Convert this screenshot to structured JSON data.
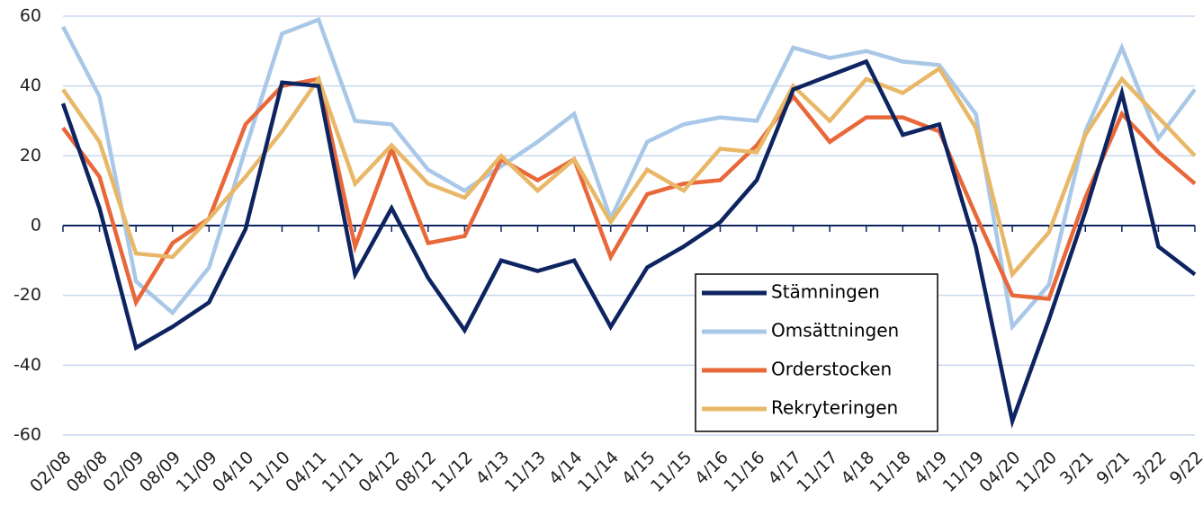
{
  "chart_data": {
    "type": "line",
    "categories": [
      "02/08",
      "08/08",
      "02/09",
      "08/09",
      "11/09",
      "04/10",
      "11/10",
      "04/11",
      "11/11",
      "04/12",
      "08/12",
      "11/12",
      "4/13",
      "11/13",
      "4/14",
      "11/14",
      "4/15",
      "11/15",
      "4/16",
      "11/16",
      "4/17",
      "11/17",
      "4/18",
      "11/18",
      "4/19",
      "11/19",
      "04/20",
      "11/20",
      "3/21",
      "9/21",
      "3/22",
      "9/22"
    ],
    "series": [
      {
        "name": "Stämningen",
        "color": "#0d2460",
        "values": [
          35,
          5,
          -35,
          -29,
          -22,
          -1,
          41,
          40,
          -14,
          5,
          -15,
          -30,
          -10,
          -13,
          -10,
          -29,
          -12,
          -6,
          1,
          13,
          39,
          43,
          47,
          26,
          29,
          -6,
          -56,
          -27,
          4,
          38,
          -6,
          -14
        ]
      },
      {
        "name": "Omsättningen",
        "color": "#a9c8e8",
        "values": [
          57,
          37,
          -16,
          -25,
          -12,
          22,
          55,
          59,
          30,
          29,
          16,
          10,
          17,
          24,
          32,
          2,
          24,
          29,
          31,
          30,
          51,
          48,
          50,
          47,
          46,
          32,
          -29,
          -17,
          27,
          51,
          25,
          39
        ]
      },
      {
        "name": "Orderstocken",
        "color": "#e8683a",
        "values": [
          28,
          14,
          -22,
          -5,
          2,
          29,
          40,
          42,
          -6,
          22,
          -5,
          -3,
          19,
          13,
          19,
          -9,
          9,
          12,
          13,
          23,
          37,
          24,
          31,
          31,
          27,
          3,
          -20,
          -21,
          8,
          32,
          21,
          12
        ]
      },
      {
        "name": "Rekryteringen",
        "color": "#e8b868",
        "values": [
          39,
          24,
          -8,
          -9,
          2,
          14,
          27,
          42,
          12,
          23,
          12,
          8,
          20,
          10,
          19,
          1,
          16,
          10,
          22,
          21,
          40,
          30,
          42,
          38,
          45,
          28,
          -14,
          -2,
          26,
          42,
          31,
          20
        ]
      }
    ],
    "ylim": [
      -60,
      60
    ],
    "yticks": [
      -60,
      -40,
      -20,
      0,
      20,
      40,
      60
    ],
    "grid": true
  }
}
